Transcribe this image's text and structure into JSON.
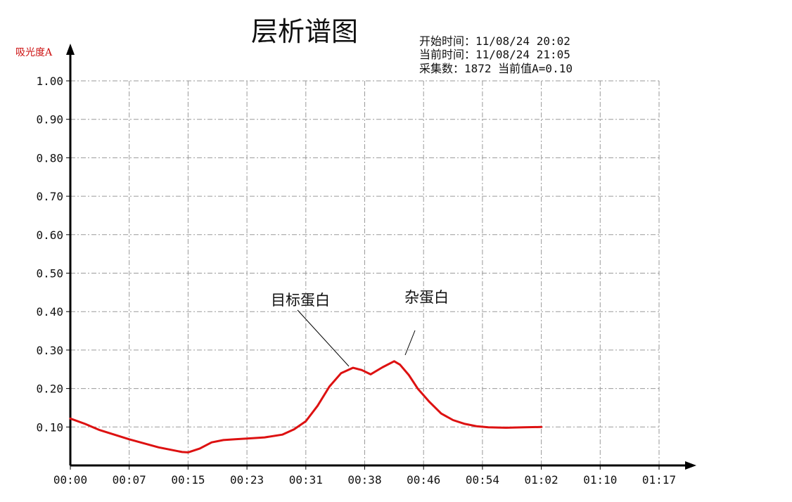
{
  "chart_data": {
    "type": "line",
    "title": "层析谱图",
    "ylabel": "吸光度A",
    "info": {
      "start": "开始时间：11/08/24 20:02",
      "current": "当前时间：11/08/24 21:05",
      "count": "采集数：1872 当前值A=0.10"
    },
    "x_ticks": [
      "00:00",
      "00:07",
      "00:15",
      "00:23",
      "00:31",
      "00:38",
      "00:46",
      "00:54",
      "01:02",
      "01:10",
      "01:17"
    ],
    "y_ticks": [
      "1.00",
      "0.90",
      "0.80",
      "0.70",
      "0.60",
      "0.50",
      "0.40",
      "0.30",
      "0.20",
      "0.10"
    ],
    "ylim": [
      0,
      1.0
    ],
    "grid": true,
    "series": [
      {
        "color": "#dd1111",
        "x": [
          0,
          0.25,
          0.5,
          1,
          1.5,
          1.9,
          2,
          2.2,
          2.4,
          2.6,
          2.8,
          3,
          3.3,
          3.6,
          3.8,
          4,
          4.2,
          4.4,
          4.6,
          4.8,
          4.95,
          5.1,
          5.3,
          5.5,
          5.6,
          5.75,
          5.9,
          6.1,
          6.3,
          6.5,
          6.7,
          6.9,
          7.1,
          7.4,
          7.7,
          8
        ],
        "y": [
          0.122,
          0.108,
          0.092,
          0.068,
          0.047,
          0.035,
          0.034,
          0.044,
          0.06,
          0.066,
          0.068,
          0.07,
          0.073,
          0.08,
          0.094,
          0.115,
          0.155,
          0.205,
          0.24,
          0.254,
          0.248,
          0.237,
          0.255,
          0.271,
          0.262,
          0.235,
          0.2,
          0.165,
          0.135,
          0.118,
          0.108,
          0.102,
          0.099,
          0.098,
          0.099,
          0.1
        ]
      }
    ],
    "annotations": [
      {
        "text": "目标蛋白"
      },
      {
        "text": "杂蛋白"
      }
    ]
  }
}
